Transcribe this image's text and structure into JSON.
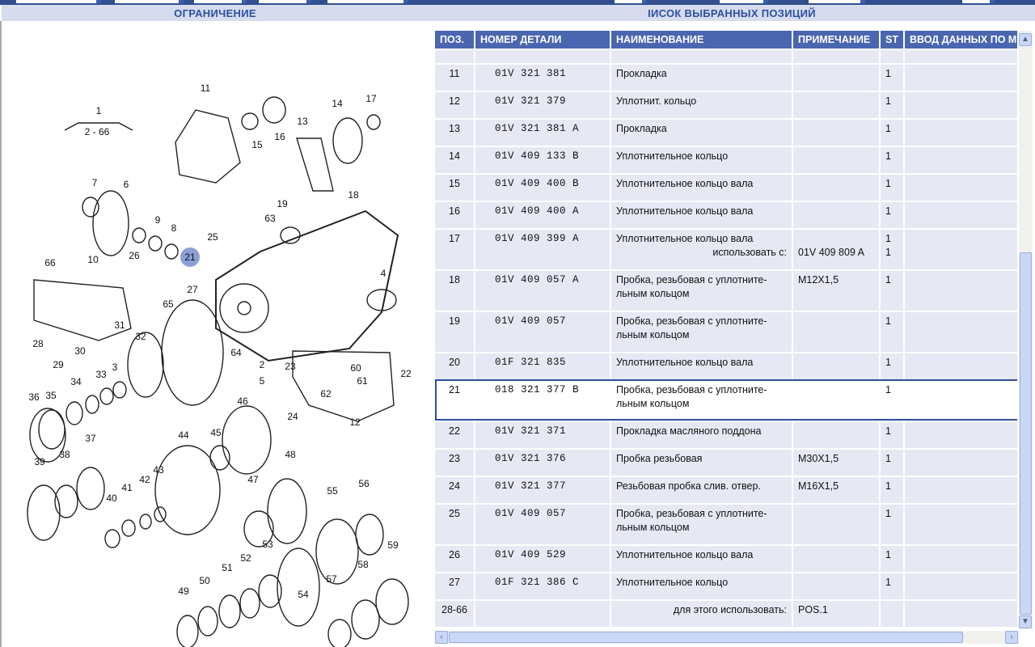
{
  "left_title": "ОГРАНИЧЕНИЕ",
  "right_title": "ІИСОК ВЫБРАННЫХ ПОЗИЦИЙ",
  "columns": [
    "ПОЗ.",
    "НОМЕР ДЕТАЛИ",
    "НАИМЕНОВАНИЕ",
    "ПРИМЕЧАНИЕ",
    "ST",
    "ВВОД ДАННЫХ ПО М"
  ],
  "rows": [
    {
      "pos": "11",
      "part": "01V 321 381",
      "name": "Прокладка",
      "note": "",
      "st": "1"
    },
    {
      "pos": "12",
      "part": "01V 321 379",
      "name": "Уплотнит. кольцо",
      "note": "",
      "st": "1"
    },
    {
      "pos": "13",
      "part": "01V 321 381 A",
      "name": "Прокладка",
      "note": "",
      "st": "1"
    },
    {
      "pos": "14",
      "part": "01V 409 133 B",
      "name": "Уплотнительное кольцо",
      "note": "",
      "st": "1"
    },
    {
      "pos": "15",
      "part": "01V 409 400 B",
      "name": "Уплотнительное кольцо вала",
      "note": "",
      "st": "1"
    },
    {
      "pos": "16",
      "part": "01V 409 400 A",
      "name": "Уплотнительное кольцо вала",
      "note": "",
      "st": "1"
    },
    {
      "pos": "17",
      "part": "01V 409 399 A",
      "name": "Уплотнительное кольцо вала",
      "name2": "использовать с:",
      "note": "01V 409 809 A",
      "st": "1",
      "st2": "1"
    },
    {
      "pos": "18",
      "part": "01V 409 057 A",
      "name": "Пробка, резьбовая с уплотните-\nльным кольцом",
      "note": "M12X1,5",
      "st": "1"
    },
    {
      "pos": "19",
      "part": "01V 409 057",
      "name": "Пробка, резьбовая с уплотните-\nльным кольцом",
      "note": "",
      "st": "1"
    },
    {
      "pos": "20",
      "part": "01F 321 835",
      "name": "Уплотнительное кольцо вала",
      "note": "",
      "st": "1"
    },
    {
      "pos": "21",
      "part": "018 321 377 B",
      "name": "Пробка, резьбовая с уплотните-\nльным кольцом",
      "note": "",
      "st": "1",
      "selected": true
    },
    {
      "pos": "22",
      "part": "01V 321 371",
      "name": "Прокладка масляного поддона",
      "note": "",
      "st": "1"
    },
    {
      "pos": "23",
      "part": "01V 321 376",
      "name": "Пробка резьбовая",
      "note": "M30X1,5",
      "st": "1"
    },
    {
      "pos": "24",
      "part": "01V 321 377",
      "name": "Резьбовая пробка слив. отвер.",
      "note": "M16X1,5",
      "st": "1"
    },
    {
      "pos": "25",
      "part": "01V 409 057",
      "name": "Пробка, резьбовая с уплотните-\nльным кольцом",
      "note": "",
      "st": "1"
    },
    {
      "pos": "26",
      "part": "01V 409 529",
      "name": "Уплотнительное кольцо вала",
      "note": "",
      "st": "1"
    },
    {
      "pos": "27",
      "part": "01F 321 386 C",
      "name": "Уплотнительное кольцо",
      "note": "",
      "st": "1"
    },
    {
      "pos": "28-66",
      "part": "",
      "name": "",
      "name2": "для этого использовать:",
      "note": "POS.1",
      "st": ""
    }
  ],
  "diagram": {
    "highlight_color": "#8b9fd6",
    "callouts": [
      "1",
      "2 - 66",
      "11",
      "14",
      "17",
      "13",
      "15",
      "16",
      "18",
      "19",
      "7",
      "6",
      "9",
      "8",
      "63",
      "25",
      "21",
      "10",
      "26",
      "66",
      "27",
      "4",
      "65",
      "31",
      "32",
      "28",
      "30",
      "29",
      "64",
      "2",
      "23",
      "22",
      "60",
      "61",
      "5",
      "62",
      "3",
      "33",
      "34",
      "36",
      "35",
      "24",
      "12",
      "46",
      "44",
      "45",
      "37",
      "38",
      "39",
      "48",
      "47",
      "41",
      "42",
      "43",
      "40",
      "55",
      "56",
      "53",
      "52",
      "51",
      "50",
      "49",
      "54",
      "57",
      "58",
      "59"
    ],
    "highlighted": "21"
  },
  "scroll_icons": [
    "scroll-up-icon",
    "scroll-down-icon",
    "scroll-left-icon",
    "scroll-right-icon"
  ]
}
